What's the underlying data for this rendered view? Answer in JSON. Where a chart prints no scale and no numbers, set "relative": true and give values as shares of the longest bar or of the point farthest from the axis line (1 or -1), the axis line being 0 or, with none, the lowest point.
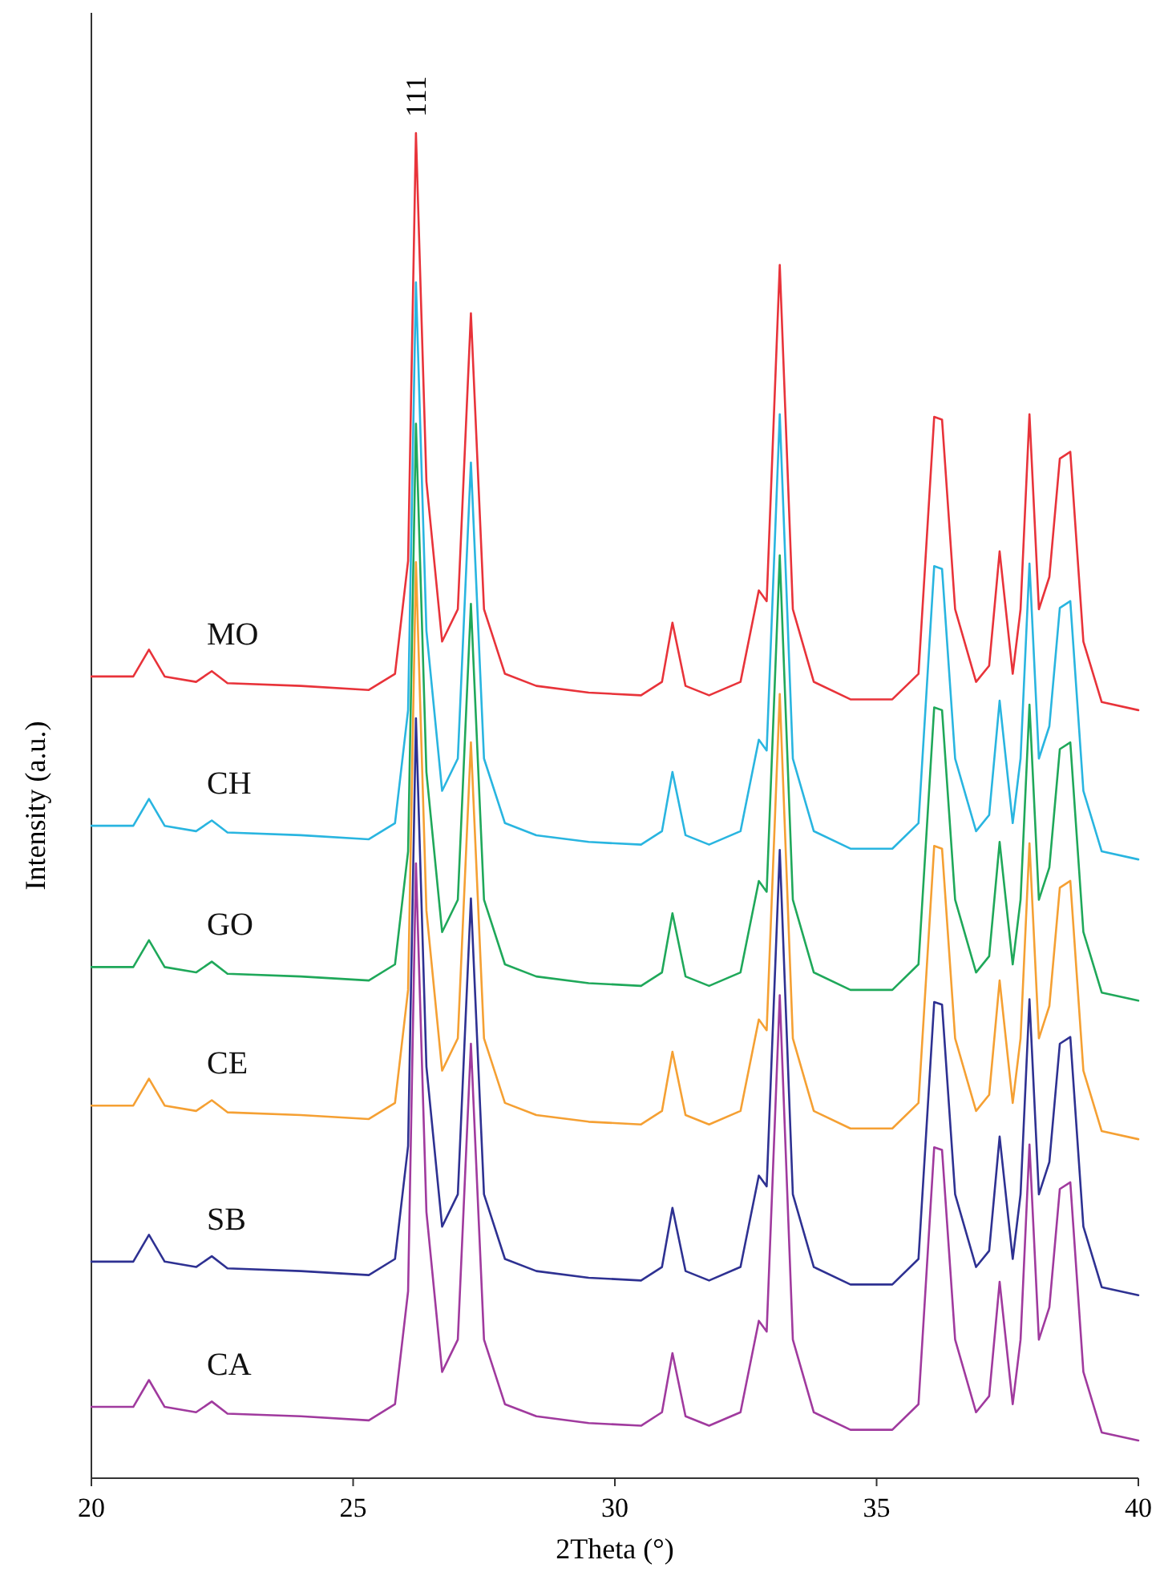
{
  "chart_data": {
    "type": "line",
    "relative": true,
    "xlabel": "2Theta (°)",
    "ylabel": "Intensity (a.u.)",
    "xlim": [
      20,
      40
    ],
    "xticks": [
      20,
      25,
      30,
      35,
      40
    ],
    "x": [
      20,
      20.8,
      21.1,
      21.4,
      22.0,
      22.3,
      22.6,
      24.0,
      25.3,
      25.8,
      26.05,
      26.2,
      26.4,
      26.7,
      27.0,
      27.25,
      27.5,
      27.9,
      28.5,
      29.5,
      30.5,
      30.9,
      31.1,
      31.35,
      31.8,
      32.4,
      32.75,
      32.9,
      33.15,
      33.4,
      33.8,
      34.5,
      35.3,
      35.8,
      36.1,
      36.25,
      36.5,
      36.9,
      37.15,
      37.35,
      37.6,
      37.75,
      37.92,
      38.1,
      38.3,
      38.5,
      38.7,
      38.95,
      39.3,
      40
    ],
    "annotations": [
      {
        "text": "111",
        "x": 26.2,
        "y": 1.0
      }
    ],
    "series": [
      {
        "name": "MO",
        "color": "#e8333a",
        "values": [
          0.596,
          0.596,
          0.616,
          0.596,
          0.592,
          0.6,
          0.591,
          0.589,
          0.586,
          0.598,
          0.682,
          1.0,
          0.741,
          0.622,
          0.646,
          0.866,
          0.646,
          0.598,
          0.589,
          0.584,
          0.582,
          0.592,
          0.636,
          0.589,
          0.582,
          0.592,
          0.66,
          0.652,
          0.902,
          0.646,
          0.592,
          0.579,
          0.579,
          0.598,
          0.789,
          0.787,
          0.646,
          0.592,
          0.604,
          0.689,
          0.598,
          0.646,
          0.791,
          0.646,
          0.67,
          0.758,
          0.763,
          0.622,
          0.577,
          0.571
        ]
      },
      {
        "name": "CH",
        "color": "#29b5e0",
        "values": [
          0.485,
          0.485,
          0.505,
          0.485,
          0.481,
          0.489,
          0.48,
          0.478,
          0.475,
          0.487,
          0.571,
          0.889,
          0.63,
          0.511,
          0.535,
          0.755,
          0.535,
          0.487,
          0.478,
          0.473,
          0.471,
          0.481,
          0.525,
          0.478,
          0.471,
          0.481,
          0.549,
          0.541,
          0.791,
          0.535,
          0.481,
          0.468,
          0.468,
          0.487,
          0.678,
          0.676,
          0.535,
          0.481,
          0.493,
          0.578,
          0.487,
          0.535,
          0.68,
          0.535,
          0.559,
          0.647,
          0.652,
          0.511,
          0.466,
          0.46
        ]
      },
      {
        "name": "GO",
        "color": "#1fa85a",
        "values": [
          0.38,
          0.38,
          0.4,
          0.38,
          0.376,
          0.384,
          0.375,
          0.373,
          0.37,
          0.382,
          0.466,
          0.784,
          0.525,
          0.406,
          0.43,
          0.65,
          0.43,
          0.382,
          0.373,
          0.368,
          0.366,
          0.376,
          0.42,
          0.373,
          0.366,
          0.376,
          0.444,
          0.436,
          0.686,
          0.43,
          0.376,
          0.363,
          0.363,
          0.382,
          0.573,
          0.571,
          0.43,
          0.376,
          0.388,
          0.473,
          0.382,
          0.43,
          0.575,
          0.43,
          0.454,
          0.542,
          0.547,
          0.406,
          0.361,
          0.355
        ]
      },
      {
        "name": "CE",
        "color": "#f5a033",
        "values": [
          0.277,
          0.277,
          0.297,
          0.277,
          0.273,
          0.281,
          0.272,
          0.27,
          0.267,
          0.279,
          0.363,
          0.681,
          0.422,
          0.303,
          0.327,
          0.547,
          0.327,
          0.279,
          0.27,
          0.265,
          0.263,
          0.273,
          0.317,
          0.27,
          0.263,
          0.273,
          0.341,
          0.333,
          0.583,
          0.327,
          0.273,
          0.26,
          0.26,
          0.279,
          0.47,
          0.468,
          0.327,
          0.273,
          0.285,
          0.37,
          0.279,
          0.327,
          0.472,
          0.327,
          0.351,
          0.439,
          0.444,
          0.303,
          0.258,
          0.252
        ]
      },
      {
        "name": "SB",
        "color": "#2e3192",
        "values": [
          0.161,
          0.161,
          0.181,
          0.161,
          0.157,
          0.165,
          0.156,
          0.154,
          0.151,
          0.163,
          0.247,
          0.565,
          0.306,
          0.187,
          0.211,
          0.431,
          0.211,
          0.163,
          0.154,
          0.149,
          0.147,
          0.157,
          0.201,
          0.154,
          0.147,
          0.157,
          0.225,
          0.217,
          0.467,
          0.211,
          0.157,
          0.144,
          0.144,
          0.163,
          0.354,
          0.352,
          0.211,
          0.157,
          0.169,
          0.254,
          0.163,
          0.211,
          0.356,
          0.211,
          0.235,
          0.323,
          0.328,
          0.187,
          0.142,
          0.136
        ]
      },
      {
        "name": "CA",
        "color": "#a03a9e",
        "values": [
          0.053,
          0.053,
          0.073,
          0.053,
          0.049,
          0.057,
          0.048,
          0.046,
          0.043,
          0.055,
          0.139,
          0.457,
          0.198,
          0.079,
          0.103,
          0.323,
          0.103,
          0.055,
          0.046,
          0.041,
          0.039,
          0.049,
          0.093,
          0.046,
          0.039,
          0.049,
          0.117,
          0.109,
          0.359,
          0.103,
          0.049,
          0.036,
          0.036,
          0.055,
          0.246,
          0.244,
          0.103,
          0.049,
          0.061,
          0.146,
          0.055,
          0.103,
          0.248,
          0.103,
          0.127,
          0.215,
          0.22,
          0.079,
          0.034,
          0.028
        ]
      }
    ]
  }
}
